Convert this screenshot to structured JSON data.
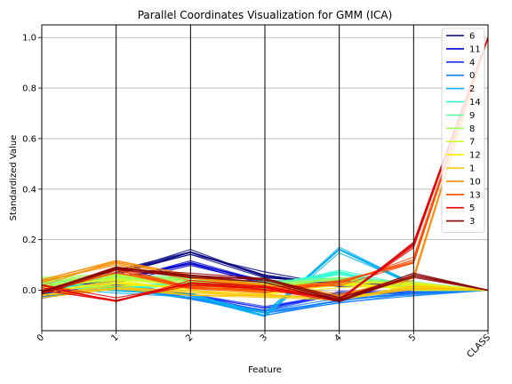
{
  "chart_data": {
    "type": "line",
    "subtype": "parallel-coordinates",
    "title": "Parallel Coordinates Visualization for GMM (ICA)",
    "xlabel": "Feature",
    "ylabel": "Standardized Value",
    "categories": [
      "0",
      "1",
      "2",
      "3",
      "4",
      "5",
      "CLASS"
    ],
    "ylim": [
      -0.16,
      1.05
    ],
    "yticks": [
      "0.0",
      "0.2",
      "0.4",
      "0.6",
      "0.8",
      "1.0"
    ],
    "grid": "horizontal lines plus vertical axis lines at every feature",
    "legend_position": "top-right",
    "series": [
      {
        "name": "6",
        "color": "#00007f",
        "values": [
          -0.02,
          0.07,
          0.15,
          0.06,
          0.02,
          0.02,
          0.0
        ]
      },
      {
        "name": "11",
        "color": "#0000d0",
        "values": [
          0.0,
          0.04,
          0.11,
          0.03,
          0.03,
          0.02,
          0.0
        ]
      },
      {
        "name": "4",
        "color": "#1930ff",
        "values": [
          -0.02,
          0.02,
          -0.02,
          -0.07,
          -0.01,
          -0.01,
          0.0
        ]
      },
      {
        "name": "0",
        "color": "#0a7cff",
        "values": [
          -0.02,
          0.02,
          -0.03,
          -0.09,
          -0.04,
          -0.01,
          0.0
        ]
      },
      {
        "name": "2",
        "color": "#00b0f0",
        "values": [
          0.02,
          0.0,
          -0.02,
          -0.1,
          0.16,
          0.02,
          0.0
        ]
      },
      {
        "name": "14",
        "color": "#29ffce",
        "values": [
          0.02,
          0.01,
          0.03,
          0.01,
          0.07,
          0.01,
          0.0
        ]
      },
      {
        "name": "9",
        "color": "#6affa0",
        "values": [
          0.03,
          0.05,
          0.05,
          0.03,
          0.05,
          0.03,
          0.0
        ]
      },
      {
        "name": "8",
        "color": "#a0ff5a",
        "values": [
          0.04,
          0.06,
          0.04,
          0.02,
          0.04,
          0.02,
          0.0
        ]
      },
      {
        "name": "7",
        "color": "#ceff29",
        "values": [
          0.01,
          0.05,
          0.02,
          0.01,
          0.03,
          0.01,
          0.0
        ]
      },
      {
        "name": "12",
        "color": "#ffee00",
        "values": [
          -0.01,
          0.03,
          0.01,
          -0.01,
          0.02,
          0.02,
          0.0
        ]
      },
      {
        "name": "1",
        "color": "#ffc400",
        "values": [
          -0.02,
          0.01,
          -0.01,
          -0.02,
          -0.03,
          0.01,
          0.0
        ]
      },
      {
        "name": "10",
        "color": "#ff8c00",
        "values": [
          0.03,
          0.11,
          0.05,
          0.02,
          -0.02,
          0.05,
          1.0
        ]
      },
      {
        "name": "13",
        "color": "#ff4a00",
        "values": [
          0.0,
          0.08,
          0.01,
          0.0,
          0.03,
          0.12,
          1.0
        ]
      },
      {
        "name": "5",
        "color": "#e40000",
        "values": [
          0.01,
          -0.04,
          0.03,
          0.01,
          -0.04,
          0.18,
          1.0
        ]
      },
      {
        "name": "3",
        "color": "#8a0000",
        "values": [
          -0.01,
          0.09,
          0.06,
          0.04,
          -0.04,
          0.06,
          0.0
        ]
      }
    ]
  }
}
